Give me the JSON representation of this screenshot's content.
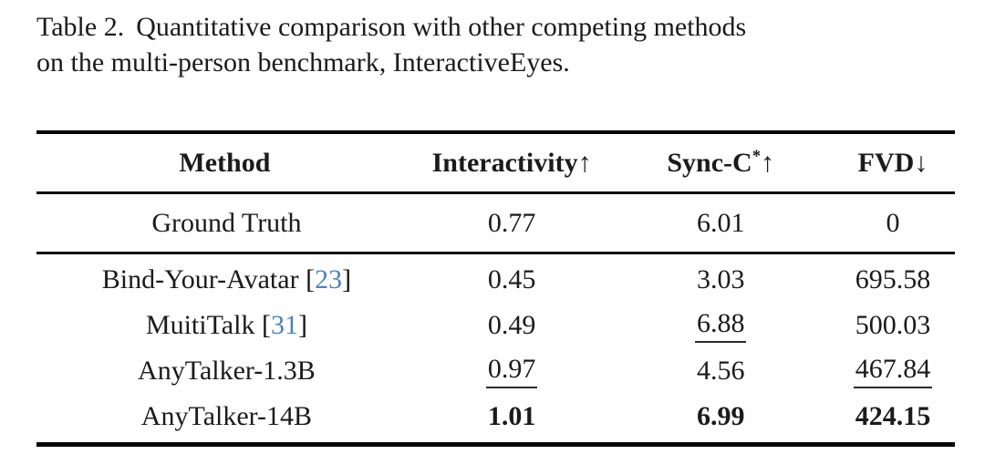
{
  "caption": {
    "label": "Table 2.",
    "line1_rest": "Quantitative comparison with other competing methods",
    "line2": "on the multi-person benchmark, InteractiveEyes."
  },
  "colors": {
    "citation_blue": "#4d82b8",
    "text": "#1b1b1b",
    "rule_black": "#050505"
  },
  "table": {
    "columns": [
      {
        "id": "method",
        "label": "Method",
        "sup": "",
        "arrow": ""
      },
      {
        "id": "interactivity",
        "label": "Interactivity",
        "sup": "",
        "arrow": "↑"
      },
      {
        "id": "sync-c",
        "label": "Sync-C",
        "sup": "*",
        "arrow": "↑"
      },
      {
        "id": "fvd",
        "label": "FVD",
        "sup": "",
        "arrow": "↓"
      }
    ],
    "rows": [
      {
        "section": "reference",
        "method": "Ground Truth",
        "citation": "",
        "values": [
          {
            "text": "0.77"
          },
          {
            "text": "6.01"
          },
          {
            "text": "0"
          }
        ]
      },
      {
        "section": "main",
        "method": "Bind-Your-Avatar",
        "citation": "23",
        "values": [
          {
            "text": "0.45"
          },
          {
            "text": "3.03"
          },
          {
            "text": "695.58"
          }
        ]
      },
      {
        "section": "main",
        "method": "MuitiTalk",
        "citation": "31",
        "values": [
          {
            "text": "0.49"
          },
          {
            "text": "6.88",
            "underline": true
          },
          {
            "text": "500.03"
          }
        ]
      },
      {
        "section": "main",
        "method": "AnyTalker-1.3B",
        "citation": "",
        "values": [
          {
            "text": "0.97",
            "underline": true
          },
          {
            "text": "4.56"
          },
          {
            "text": "467.84",
            "underline": true
          }
        ]
      },
      {
        "section": "main",
        "method": "AnyTalker-14B",
        "citation": "",
        "values": [
          {
            "text": "1.01",
            "bold": true
          },
          {
            "text": "6.99",
            "bold": true
          },
          {
            "text": "424.15",
            "bold": true
          }
        ]
      }
    ]
  }
}
